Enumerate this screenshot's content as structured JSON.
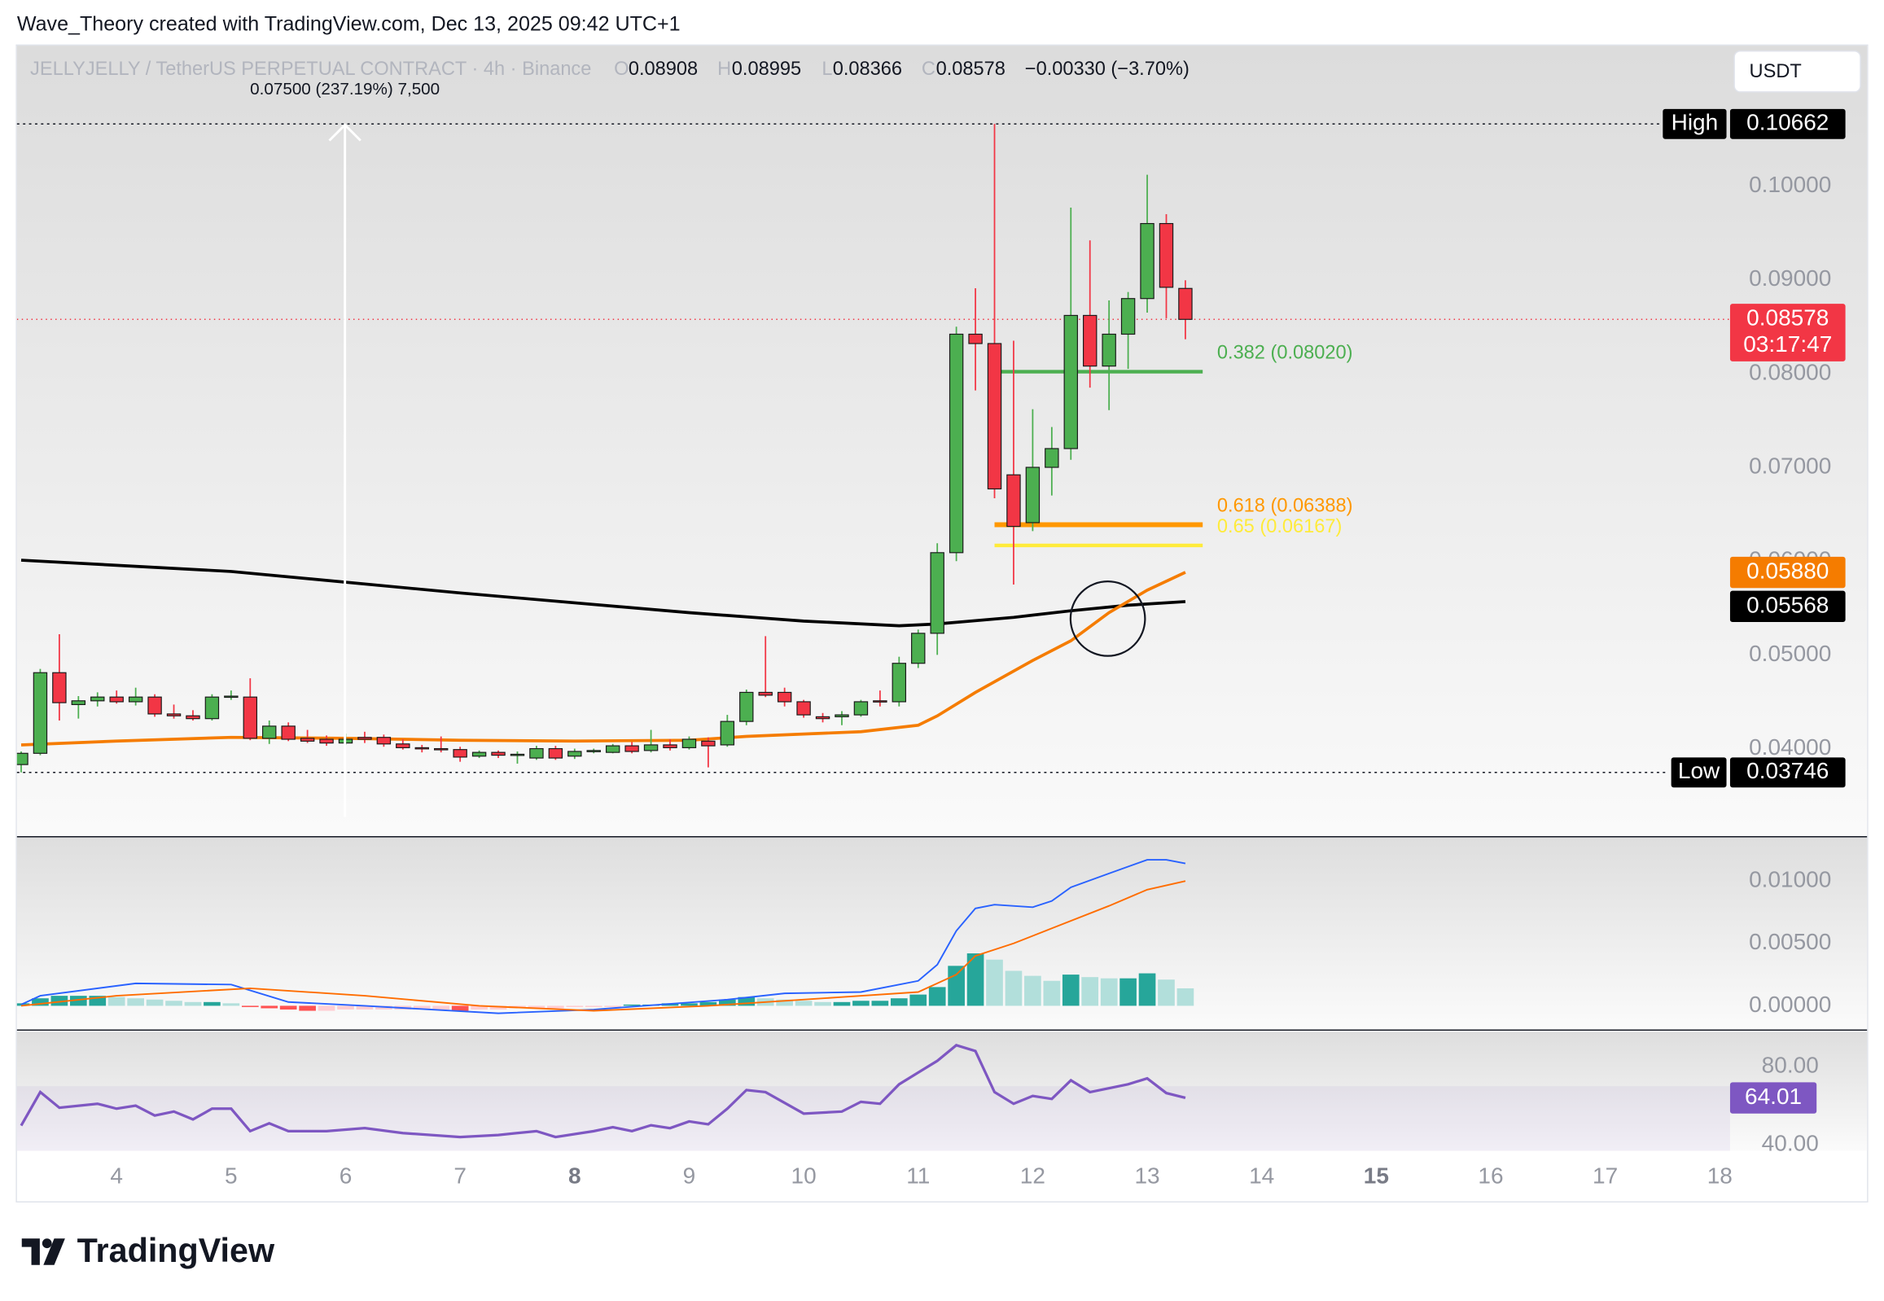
{
  "watermark": "Wave_Theory created with TradingView.com, Dec 13, 2025 09:42 UTC+1",
  "currency_button": "USDT",
  "footer_logo": "TradingView",
  "chart_data": {
    "type": "candlestick",
    "symbol": "JELLYJELLY / TetherUS PERPETUAL CONTRACT · 4h · Binance",
    "header": {
      "o_label": "O",
      "o": "0.08908",
      "h_label": "H",
      "h": "0.08995",
      "l_label": "L",
      "l": "0.08366",
      "c_label": "C",
      "c": "0.08578",
      "change": "−0.00330 (−3.70%)"
    },
    "measure_label": "0.07500 (237.19%) 7,500",
    "countdown": "03:17:47",
    "high_label": "High",
    "low_label": "Low",
    "up_color": "#4caf50",
    "down_color": "#f23645",
    "x": [
      3.1667,
      3.3333,
      3.5,
      3.6667,
      3.8333,
      4,
      4.1667,
      4.3333,
      4.5,
      4.6667,
      4.8333,
      5,
      5.1667,
      5.3333,
      5.5,
      5.6667,
      5.8333,
      6,
      6.1667,
      6.3333,
      6.5,
      6.6667,
      6.8333,
      7,
      7.1667,
      7.3333,
      7.5,
      7.6667,
      7.8333,
      8,
      8.1667,
      8.3333,
      8.5,
      8.6667,
      8.8333,
      9,
      9.1667,
      9.3333,
      9.5,
      9.6667,
      9.8333,
      10,
      10.1667,
      10.3333,
      10.5,
      10.6667,
      10.8333,
      11,
      11.1667,
      11.3333,
      11.5,
      11.6667,
      11.8333,
      12,
      12.1667,
      12.3333,
      12.5,
      12.6667,
      12.8333,
      13,
      13.1667,
      13.3333
    ],
    "open": [
      0.0383,
      0.0395,
      0.0481,
      0.0447,
      0.0451,
      0.0455,
      0.045,
      0.0455,
      0.0437,
      0.0435,
      0.0432,
      0.0455,
      0.0455,
      0.0411,
      0.0424,
      0.0411,
      0.041,
      0.0406,
      0.0412,
      0.0412,
      0.0405,
      0.0401,
      0.04,
      0.0399,
      0.0392,
      0.0396,
      0.0393,
      0.039,
      0.04,
      0.0392,
      0.0397,
      0.0396,
      0.0403,
      0.0398,
      0.0404,
      0.0401,
      0.0408,
      0.0404,
      0.0429,
      0.046,
      0.046,
      0.045,
      0.0434,
      0.0434,
      0.0436,
      0.0451,
      0.045,
      0.0491,
      0.0523,
      0.0609,
      0.0842,
      0.0832,
      0.0692,
      0.0641,
      0.07,
      0.072,
      0.0862,
      0.0808,
      0.0842,
      0.088,
      0.096,
      0.08908
    ],
    "high": [
      0.0397,
      0.0485,
      0.0522,
      0.0456,
      0.046,
      0.0462,
      0.0465,
      0.0458,
      0.0447,
      0.0441,
      0.0458,
      0.0462,
      0.0475,
      0.043,
      0.0428,
      0.042,
      0.0414,
      0.0416,
      0.0418,
      0.0415,
      0.041,
      0.0404,
      0.0413,
      0.0402,
      0.0398,
      0.0398,
      0.0397,
      0.0403,
      0.0403,
      0.04,
      0.04,
      0.0405,
      0.0407,
      0.042,
      0.041,
      0.0413,
      0.0412,
      0.0436,
      0.0463,
      0.052,
      0.0465,
      0.0452,
      0.0438,
      0.044,
      0.0452,
      0.0462,
      0.0498,
      0.0527,
      0.0619,
      0.085,
      0.0891,
      0.10662,
      0.0835,
      0.0762,
      0.0743,
      0.0977,
      0.0942,
      0.0878,
      0.0887,
      0.1012,
      0.097,
      0.08995
    ],
    "low": [
      0.03746,
      0.0393,
      0.043,
      0.0432,
      0.0445,
      0.0448,
      0.0446,
      0.0434,
      0.0432,
      0.043,
      0.043,
      0.0452,
      0.0409,
      0.0405,
      0.0408,
      0.0406,
      0.0403,
      0.0404,
      0.0406,
      0.0402,
      0.0399,
      0.0396,
      0.0396,
      0.0386,
      0.039,
      0.039,
      0.0384,
      0.0388,
      0.0388,
      0.0389,
      0.0395,
      0.0395,
      0.0395,
      0.0396,
      0.0398,
      0.0399,
      0.038,
      0.0402,
      0.0425,
      0.0455,
      0.0445,
      0.0433,
      0.0428,
      0.0425,
      0.0434,
      0.0445,
      0.0445,
      0.0486,
      0.05,
      0.06,
      0.0782,
      0.0667,
      0.0575,
      0.0632,
      0.067,
      0.0708,
      0.0785,
      0.0761,
      0.0805,
      0.0865,
      0.0859,
      0.08366
    ],
    "close": [
      0.0395,
      0.0481,
      0.0449,
      0.0451,
      0.0455,
      0.045,
      0.0455,
      0.0437,
      0.0435,
      0.0432,
      0.0455,
      0.0456,
      0.0411,
      0.0424,
      0.041,
      0.0408,
      0.0406,
      0.041,
      0.041,
      0.0405,
      0.0401,
      0.04,
      0.0399,
      0.0391,
      0.0396,
      0.0393,
      0.0394,
      0.04,
      0.039,
      0.0397,
      0.0398,
      0.0403,
      0.0397,
      0.0404,
      0.0401,
      0.041,
      0.0403,
      0.0429,
      0.046,
      0.0457,
      0.045,
      0.0436,
      0.0432,
      0.0436,
      0.045,
      0.045,
      0.0491,
      0.0523,
      0.0609,
      0.0842,
      0.0832,
      0.0677,
      0.0637,
      0.07,
      0.072,
      0.0862,
      0.0808,
      0.0842,
      0.088,
      0.096,
      0.0892,
      0.08578
    ],
    "xlim": [
      3.13,
      18.09
    ],
    "xticks": [
      4,
      5,
      6,
      7,
      8,
      9,
      10,
      11,
      12,
      13,
      14,
      15,
      16,
      17,
      18
    ],
    "bold_xticks": [
      8,
      15
    ],
    "ylim": [
      0.0308,
      0.1151
    ],
    "yticks": [
      {
        "value": 0.04,
        "label": "0.04000"
      },
      {
        "value": 0.05,
        "label": "0.05000"
      },
      {
        "value": 0.06,
        "label": "0.06000"
      },
      {
        "value": 0.07,
        "label": "0.07000"
      },
      {
        "value": 0.08,
        "label": "0.08000"
      },
      {
        "value": 0.09,
        "label": "0.09000"
      },
      {
        "value": 0.1,
        "label": "0.10000"
      }
    ],
    "grid": false,
    "fib_levels": [
      {
        "label": "0.382 (0.08020)",
        "value": 0.0802,
        "color": "#4caf50"
      },
      {
        "label": "0.618 (0.06388)",
        "value": 0.06388,
        "color": "#ff9800"
      },
      {
        "label": "0.65 (0.06167)",
        "value": 0.06167,
        "color": "#ffeb3b"
      }
    ],
    "moving_averages": [
      {
        "color": "#000000",
        "x": [
          3.1667,
          5,
          7,
          9,
          10,
          10.8333,
          11.1667,
          11.8333,
          12.3333,
          12.8333,
          13.3333
        ],
        "values": [
          0.0601,
          0.0589,
          0.0566,
          0.0545,
          0.0536,
          0.0531,
          0.0533,
          0.054,
          0.0547,
          0.0553,
          0.05568
        ]
      },
      {
        "color": "#f57c00",
        "x": [
          3.1667,
          4,
          5,
          6,
          7,
          8,
          9,
          9.5,
          10.5,
          11,
          11.1667,
          11.5,
          12,
          12.3333,
          12.6667,
          13,
          13.3333
        ],
        "values": [
          0.0404,
          0.0408,
          0.0412,
          0.0411,
          0.0409,
          0.0408,
          0.0409,
          0.0413,
          0.0418,
          0.0425,
          0.0435,
          0.046,
          0.0494,
          0.0515,
          0.0545,
          0.0569,
          0.0588
        ],
        "last_value_label": "0.05880"
      }
    ],
    "macd": {
      "ylim": [
        -0.0019,
        0.0135
      ],
      "yticks": [
        {
          "value": 0,
          "label": "0.00000"
        },
        {
          "value": 0.005,
          "label": "0.00500"
        },
        {
          "value": 0.01,
          "label": "0.01000"
        }
      ],
      "histogram": [
        0.0002,
        0.0006,
        0.0008,
        0.0008,
        0.0008,
        0.0007,
        0.0006,
        0.0005,
        0.0004,
        0.0003,
        0.0003,
        0.0002,
        -0.0001,
        -0.0002,
        -0.0003,
        -0.0004,
        -0.0004,
        -0.0003,
        -0.0003,
        -0.0003,
        -0.0003,
        -0.0003,
        -0.0003,
        -0.0004,
        -0.0003,
        -0.0003,
        -0.0002,
        -0.0002,
        -0.0002,
        -0.0001,
        -0.0001,
        -0.0001,
        0.0001,
        0.0001,
        0.0002,
        0.0002,
        0.0003,
        0.0005,
        0.0007,
        0.0006,
        0.0005,
        0.0004,
        0.0003,
        0.0003,
        0.0004,
        0.0004,
        0.0006,
        0.0009,
        0.0015,
        0.0032,
        0.0042,
        0.0037,
        0.0028,
        0.0024,
        0.002,
        0.0025,
        0.0023,
        0.0022,
        0.0022,
        0.0026,
        0.0021,
        0.0014
      ],
      "histogram_colors": {
        "pos_rising": "#26a69a",
        "pos_falling": "#b2dfdb",
        "neg_falling": "#ff5252",
        "neg_rising": "#ffcdd2"
      },
      "lines": [
        {
          "color": "#2962ff",
          "x": [
            3.1667,
            3.3333,
            4.1667,
            5,
            5.5,
            6.1667,
            7.3333,
            8.1667,
            9.3333,
            9.8333,
            10.5,
            11,
            11.1667,
            11.3333,
            11.5,
            11.6667,
            12,
            12.1667,
            12.3333,
            12.6667,
            13,
            13.1667,
            13.3333
          ],
          "values": [
            0.0001,
            0.0008,
            0.0018,
            0.0017,
            0.0003,
            0,
            -0.0006,
            -0.0003,
            0.0005,
            0.001,
            0.0011,
            0.002,
            0.0033,
            0.006,
            0.0078,
            0.0081,
            0.0079,
            0.0084,
            0.0095,
            0.0106,
            0.0117,
            0.0117,
            0.0114
          ]
        },
        {
          "color": "#ff6d00",
          "x": [
            3.1667,
            4,
            5.1667,
            6.1667,
            7.1667,
            8.1667,
            9.1667,
            10.3333,
            11,
            11.3333,
            11.5,
            11.8333,
            12.1667,
            12.6667,
            13,
            13.3333
          ],
          "values": [
            0,
            0.0008,
            0.0014,
            0.0008,
            0,
            -0.0004,
            0,
            0.0007,
            0.0011,
            0.0025,
            0.004,
            0.005,
            0.0062,
            0.008,
            0.0093,
            0.01
          ]
        }
      ]
    },
    "rsi": {
      "ylim": [
        36.9,
        97.8
      ],
      "yticks": [
        {
          "value": 40,
          "label": "40.00"
        },
        {
          "value": 80,
          "label": "80.00"
        }
      ],
      "band": [
        30,
        70
      ],
      "color": "#7e57c2",
      "x": [
        3.1667,
        3.3333,
        3.5,
        3.8333,
        4,
        4.1667,
        4.3333,
        4.5,
        4.6667,
        4.8333,
        5,
        5.1667,
        5.3333,
        5.5,
        5.8333,
        6.1667,
        6.5,
        7,
        7.3333,
        7.6667,
        7.8333,
        8.1667,
        8.3333,
        8.5,
        8.6667,
        8.8333,
        9,
        9.1667,
        9.3333,
        9.5,
        9.6667,
        10,
        10.3333,
        10.5,
        10.6667,
        10.8333,
        11,
        11.1667,
        11.3333,
        11.5,
        11.6667,
        11.8333,
        12,
        12.1667,
        12.3333,
        12.5,
        12.8333,
        13,
        13.1667,
        13.3333
      ],
      "values": [
        49.8,
        67,
        59,
        61,
        58.5,
        60,
        55,
        57,
        53,
        58.5,
        58.5,
        47,
        51,
        47,
        47,
        48.5,
        46,
        44,
        45,
        47,
        44,
        47,
        49,
        47,
        50,
        48.5,
        52,
        50.5,
        58.5,
        68,
        67,
        56,
        57,
        62,
        61,
        71,
        77,
        83,
        91,
        88,
        67,
        61,
        65,
        63.5,
        73,
        67,
        71,
        74,
        66.5,
        64.01
      ]
    }
  }
}
